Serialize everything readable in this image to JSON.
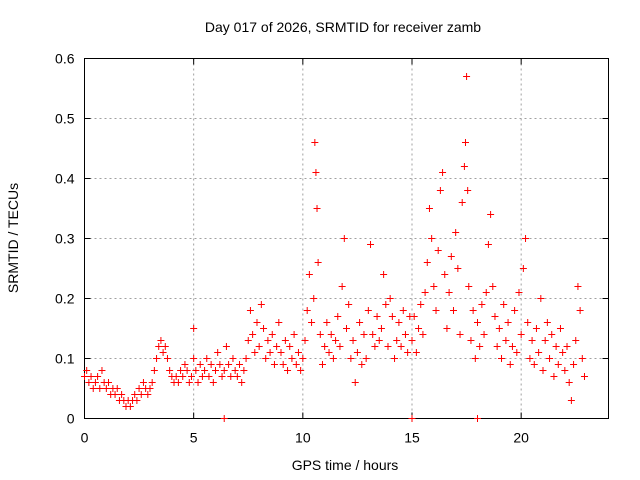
{
  "chart_data": {
    "type": "scatter",
    "title": "Day 017 of 2026, SRMTID for receiver zamb",
    "xlabel": "GPS time / hours",
    "ylabel": "SRMTID / TECUs",
    "xlim": [
      0,
      24
    ],
    "ylim": [
      0,
      0.6
    ],
    "x_ticks": [
      0,
      5,
      10,
      15,
      20
    ],
    "x_tick_labels": [
      "0",
      "5",
      "10",
      "15",
      "20"
    ],
    "y_ticks": [
      0,
      0.1,
      0.2,
      0.3,
      0.4,
      0.5,
      0.6
    ],
    "y_tick_labels": [
      "0",
      "0.1",
      "0.2",
      "0.3",
      "0.4",
      "0.5",
      "0.6"
    ],
    "grid": true,
    "marker": "+",
    "color": "#ff0000",
    "series": [
      {
        "name": "SRMTID",
        "points": [
          [
            0.0,
            0.07
          ],
          [
            0.1,
            0.08
          ],
          [
            0.2,
            0.06
          ],
          [
            0.3,
            0.07
          ],
          [
            0.4,
            0.05
          ],
          [
            0.5,
            0.06
          ],
          [
            0.6,
            0.07
          ],
          [
            0.7,
            0.05
          ],
          [
            0.8,
            0.08
          ],
          [
            0.9,
            0.06
          ],
          [
            1.0,
            0.05
          ],
          [
            1.1,
            0.06
          ],
          [
            1.2,
            0.04
          ],
          [
            1.3,
            0.05
          ],
          [
            1.4,
            0.04
          ],
          [
            1.5,
            0.05
          ],
          [
            1.6,
            0.03
          ],
          [
            1.7,
            0.04
          ],
          [
            1.8,
            0.03
          ],
          [
            1.9,
            0.02
          ],
          [
            2.0,
            0.03
          ],
          [
            2.1,
            0.02
          ],
          [
            2.2,
            0.03
          ],
          [
            2.3,
            0.04
          ],
          [
            2.4,
            0.03
          ],
          [
            2.5,
            0.05
          ],
          [
            2.6,
            0.04
          ],
          [
            2.7,
            0.06
          ],
          [
            2.8,
            0.05
          ],
          [
            2.9,
            0.04
          ],
          [
            3.0,
            0.05
          ],
          [
            3.1,
            0.06
          ],
          [
            3.2,
            0.08
          ],
          [
            3.3,
            0.1
          ],
          [
            3.4,
            0.12
          ],
          [
            3.5,
            0.13
          ],
          [
            3.6,
            0.11
          ],
          [
            3.7,
            0.12
          ],
          [
            3.8,
            0.1
          ],
          [
            3.9,
            0.08
          ],
          [
            4.0,
            0.07
          ],
          [
            4.1,
            0.06
          ],
          [
            4.2,
            0.07
          ],
          [
            4.3,
            0.06
          ],
          [
            4.4,
            0.08
          ],
          [
            4.5,
            0.07
          ],
          [
            4.6,
            0.09
          ],
          [
            4.7,
            0.08
          ],
          [
            4.8,
            0.06
          ],
          [
            4.9,
            0.07
          ],
          [
            5.0,
            0.1
          ],
          [
            5.0,
            0.15
          ],
          [
            5.1,
            0.08
          ],
          [
            5.2,
            0.06
          ],
          [
            5.3,
            0.09
          ],
          [
            5.4,
            0.07
          ],
          [
            5.5,
            0.08
          ],
          [
            5.6,
            0.1
          ],
          [
            5.7,
            0.07
          ],
          [
            5.8,
            0.09
          ],
          [
            5.9,
            0.06
          ],
          [
            6.0,
            0.08
          ],
          [
            6.1,
            0.11
          ],
          [
            6.2,
            0.09
          ],
          [
            6.3,
            0.07
          ],
          [
            6.4,
            0.08
          ],
          [
            6.5,
            0.12
          ],
          [
            6.6,
            0.09
          ],
          [
            6.7,
            0.07
          ],
          [
            6.8,
            0.1
          ],
          [
            6.9,
            0.08
          ],
          [
            6.4,
            0.0
          ],
          [
            7.0,
            0.07
          ],
          [
            7.1,
            0.09
          ],
          [
            7.2,
            0.06
          ],
          [
            7.3,
            0.08
          ],
          [
            7.4,
            0.1
          ],
          [
            7.5,
            0.13
          ],
          [
            7.6,
            0.18
          ],
          [
            7.7,
            0.14
          ],
          [
            7.8,
            0.11
          ],
          [
            7.9,
            0.16
          ],
          [
            8.0,
            0.12
          ],
          [
            8.1,
            0.19
          ],
          [
            8.2,
            0.15
          ],
          [
            8.3,
            0.1
          ],
          [
            8.4,
            0.13
          ],
          [
            8.5,
            0.11
          ],
          [
            8.6,
            0.14
          ],
          [
            8.7,
            0.09
          ],
          [
            8.8,
            0.12
          ],
          [
            8.9,
            0.16
          ],
          [
            9.0,
            0.11
          ],
          [
            9.1,
            0.09
          ],
          [
            9.2,
            0.13
          ],
          [
            9.3,
            0.08
          ],
          [
            9.4,
            0.12
          ],
          [
            9.5,
            0.1
          ],
          [
            9.6,
            0.14
          ],
          [
            9.7,
            0.09
          ],
          [
            9.8,
            0.11
          ],
          [
            9.9,
            0.08
          ],
          [
            10.0,
            0.1
          ],
          [
            10.1,
            0.13
          ],
          [
            10.2,
            0.18
          ],
          [
            10.3,
            0.24
          ],
          [
            10.4,
            0.16
          ],
          [
            10.5,
            0.2
          ],
          [
            10.55,
            0.46
          ],
          [
            10.6,
            0.41
          ],
          [
            10.65,
            0.35
          ],
          [
            10.7,
            0.26
          ],
          [
            10.8,
            0.14
          ],
          [
            10.9,
            0.09
          ],
          [
            11.0,
            0.12
          ],
          [
            11.1,
            0.16
          ],
          [
            11.2,
            0.11
          ],
          [
            11.3,
            0.14
          ],
          [
            11.4,
            0.1
          ],
          [
            11.5,
            0.13
          ],
          [
            11.6,
            0.17
          ],
          [
            11.7,
            0.12
          ],
          [
            11.8,
            0.22
          ],
          [
            11.9,
            0.3
          ],
          [
            12.0,
            0.15
          ],
          [
            12.1,
            0.19
          ],
          [
            12.2,
            0.1
          ],
          [
            12.3,
            0.13
          ],
          [
            12.4,
            0.06
          ],
          [
            12.5,
            0.11
          ],
          [
            12.6,
            0.16
          ],
          [
            12.7,
            0.09
          ],
          [
            12.8,
            0.14
          ],
          [
            12.9,
            0.1
          ],
          [
            13.0,
            0.18
          ],
          [
            13.1,
            0.29
          ],
          [
            13.2,
            0.14
          ],
          [
            13.3,
            0.12
          ],
          [
            13.4,
            0.17
          ],
          [
            13.5,
            0.13
          ],
          [
            13.6,
            0.15
          ],
          [
            13.7,
            0.24
          ],
          [
            13.8,
            0.19
          ],
          [
            13.9,
            0.12
          ],
          [
            14.0,
            0.2
          ],
          [
            14.1,
            0.17
          ],
          [
            14.2,
            0.1
          ],
          [
            14.3,
            0.13
          ],
          [
            14.4,
            0.16
          ],
          [
            14.5,
            0.12
          ],
          [
            14.6,
            0.18
          ],
          [
            14.7,
            0.14
          ],
          [
            14.8,
            0.11
          ],
          [
            14.9,
            0.17
          ],
          [
            15.0,
            0.0
          ],
          [
            15.0,
            0.13
          ],
          [
            15.1,
            0.17
          ],
          [
            15.2,
            0.11
          ],
          [
            15.3,
            0.15
          ],
          [
            15.4,
            0.19
          ],
          [
            15.5,
            0.14
          ],
          [
            15.6,
            0.21
          ],
          [
            15.7,
            0.26
          ],
          [
            15.8,
            0.35
          ],
          [
            15.9,
            0.3
          ],
          [
            16.0,
            0.22
          ],
          [
            16.1,
            0.18
          ],
          [
            16.2,
            0.28
          ],
          [
            16.3,
            0.38
          ],
          [
            16.4,
            0.41
          ],
          [
            16.5,
            0.24
          ],
          [
            16.6,
            0.15
          ],
          [
            16.7,
            0.21
          ],
          [
            16.8,
            0.27
          ],
          [
            16.9,
            0.18
          ],
          [
            17.0,
            0.31
          ],
          [
            17.1,
            0.25
          ],
          [
            17.2,
            0.14
          ],
          [
            17.3,
            0.36
          ],
          [
            17.4,
            0.42
          ],
          [
            17.45,
            0.46
          ],
          [
            17.5,
            0.57
          ],
          [
            17.55,
            0.38
          ],
          [
            17.6,
            0.22
          ],
          [
            17.7,
            0.13
          ],
          [
            17.8,
            0.18
          ],
          [
            17.9,
            0.1
          ],
          [
            18.0,
            0.0
          ],
          [
            18.0,
            0.16
          ],
          [
            18.1,
            0.12
          ],
          [
            18.2,
            0.19
          ],
          [
            18.3,
            0.14
          ],
          [
            18.4,
            0.21
          ],
          [
            18.5,
            0.29
          ],
          [
            18.6,
            0.34
          ],
          [
            18.7,
            0.22
          ],
          [
            18.8,
            0.17
          ],
          [
            18.9,
            0.12
          ],
          [
            19.0,
            0.15
          ],
          [
            19.1,
            0.1
          ],
          [
            19.2,
            0.19
          ],
          [
            19.3,
            0.13
          ],
          [
            19.4,
            0.16
          ],
          [
            19.5,
            0.09
          ],
          [
            19.6,
            0.12
          ],
          [
            19.7,
            0.18
          ],
          [
            19.8,
            0.11
          ],
          [
            19.9,
            0.21
          ],
          [
            20.0,
            0.14
          ],
          [
            20.1,
            0.25
          ],
          [
            20.2,
            0.3
          ],
          [
            20.3,
            0.16
          ],
          [
            20.4,
            0.1
          ],
          [
            20.5,
            0.13
          ],
          [
            20.6,
            0.09
          ],
          [
            20.7,
            0.15
          ],
          [
            20.8,
            0.11
          ],
          [
            20.9,
            0.2
          ],
          [
            21.0,
            0.08
          ],
          [
            21.1,
            0.13
          ],
          [
            21.2,
            0.16
          ],
          [
            21.3,
            0.1
          ],
          [
            21.4,
            0.14
          ],
          [
            21.5,
            0.07
          ],
          [
            21.6,
            0.12
          ],
          [
            21.7,
            0.09
          ],
          [
            21.8,
            0.15
          ],
          [
            21.9,
            0.11
          ],
          [
            22.0,
            0.08
          ],
          [
            22.1,
            0.12
          ],
          [
            22.2,
            0.06
          ],
          [
            22.3,
            0.03
          ],
          [
            22.4,
            0.09
          ],
          [
            22.5,
            0.13
          ],
          [
            22.6,
            0.22
          ],
          [
            22.7,
            0.18
          ],
          [
            22.8,
            0.1
          ],
          [
            22.9,
            0.07
          ]
        ]
      }
    ]
  }
}
